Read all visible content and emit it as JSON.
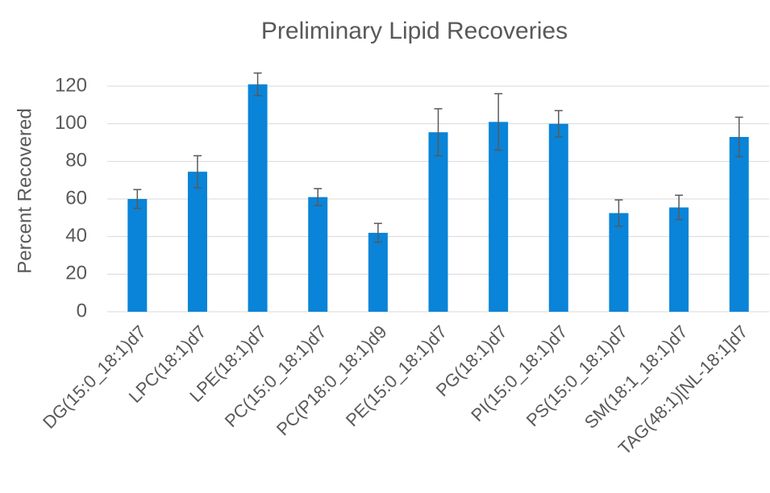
{
  "chart_data": {
    "type": "bar",
    "title": "Preliminary Lipid Recoveries",
    "y_label": "Percent Recovered",
    "categories": [
      "DG(15:0_18:1)d7",
      "LPC(18:1)d7",
      "LPE(18:1)d7",
      "PC(15:0_18:1)d7",
      "PC(P18:0_18:1)d9",
      "PE(15:0_18:1)d7",
      "PG(18:1)d7",
      "PI(15:0_18:1)d7",
      "PS(15:0_18:1)d7",
      "SM(18:1_18:1)d7",
      "TAG(48:1)[NL-18:1]d7"
    ],
    "values": [
      60,
      74.5,
      121,
      61,
      42,
      95.5,
      101,
      100,
      52.5,
      55.5,
      93
    ],
    "errors": [
      5,
      8.5,
      6,
      4.5,
      5,
      12.5,
      15,
      7,
      7,
      6.5,
      10.5
    ],
    "color": "#0984d8",
    "error_color": "#595959",
    "ylim": [
      0,
      120
    ],
    "yticks": [
      0,
      20,
      40,
      60,
      80,
      100,
      120
    ],
    "grid": true
  }
}
